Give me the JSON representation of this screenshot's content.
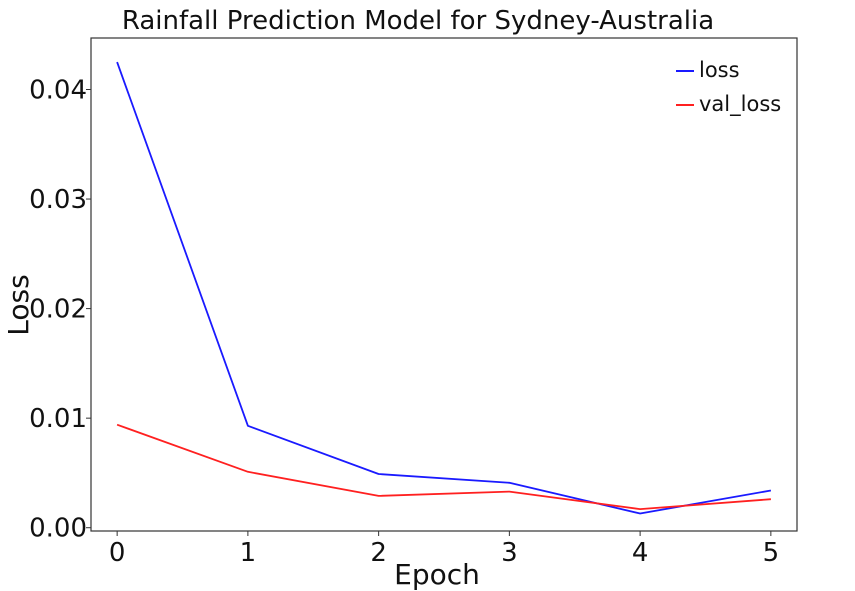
{
  "chart_data": {
    "type": "line",
    "title": "Rainfall Prediction Model for Sydney-Australia",
    "xlabel": "Epoch",
    "ylabel": "Loss",
    "x": [
      0,
      1,
      2,
      3,
      4,
      5
    ],
    "xticks": [
      "0",
      "1",
      "2",
      "3",
      "4",
      "5"
    ],
    "yticks": [
      "0.00",
      "0.01",
      "0.02",
      "0.03",
      "0.04"
    ],
    "xlim": [
      -0.2,
      5.2
    ],
    "ylim": [
      -0.0003,
      0.0447
    ],
    "grid": false,
    "legend_position": "top-right",
    "series": [
      {
        "name": "loss",
        "color": "#1a1aff",
        "values": [
          0.0425,
          0.0093,
          0.0049,
          0.0041,
          0.0013,
          0.0034
        ]
      },
      {
        "name": "val_loss",
        "color": "#ff2020",
        "values": [
          0.0094,
          0.0051,
          0.0029,
          0.0033,
          0.0017,
          0.0026
        ]
      }
    ]
  }
}
